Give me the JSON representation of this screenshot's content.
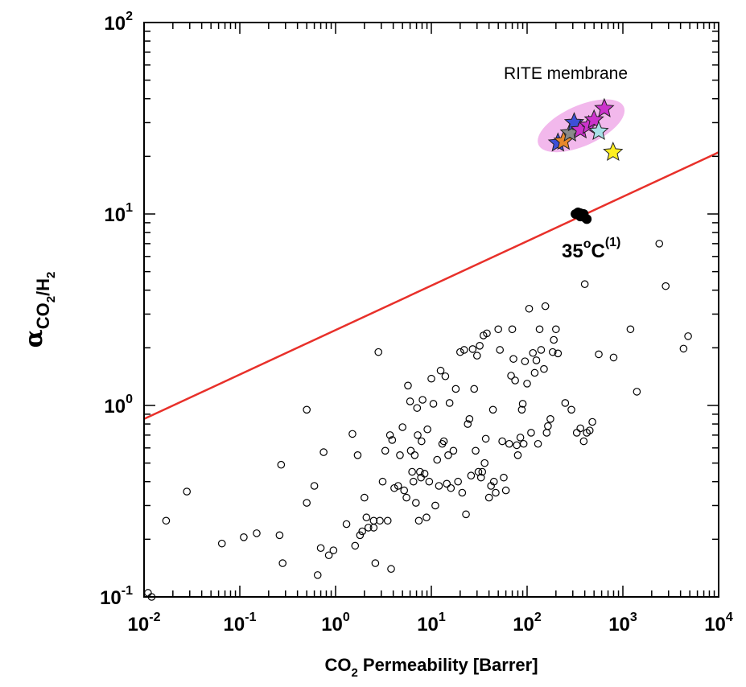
{
  "chart_data": {
    "type": "scatter",
    "xscale": "log",
    "yscale": "log",
    "xlim": [
      0.01,
      10000
    ],
    "ylim": [
      0.1,
      100
    ],
    "xlabel": {
      "pre": "CO",
      "sub": "2",
      "post": " Permeability [Barrer]"
    },
    "ylabel": {
      "greek": "α",
      "pre": "CO",
      "sub1": "2",
      "mid": "/H",
      "sub2": "2"
    },
    "x_ticks": [
      {
        "value": 0.01,
        "base": "10",
        "exp": "-2"
      },
      {
        "value": 0.1,
        "base": "10",
        "exp": "-1"
      },
      {
        "value": 1,
        "base": "10",
        "exp": "0"
      },
      {
        "value": 10,
        "base": "10",
        "exp": "1"
      },
      {
        "value": 100,
        "base": "10",
        "exp": "2"
      },
      {
        "value": 1000,
        "base": "10",
        "exp": "3"
      },
      {
        "value": 10000,
        "base": "10",
        "exp": "4"
      }
    ],
    "y_ticks": [
      {
        "value": 0.1,
        "base": "10",
        "exp": "-1"
      },
      {
        "value": 1,
        "base": "10",
        "exp": "0"
      },
      {
        "value": 10,
        "base": "10",
        "exp": "1"
      },
      {
        "value": 100,
        "base": "10",
        "exp": "2"
      }
    ],
    "upper_bound": {
      "x": [
        0.01,
        10000
      ],
      "y": [
        0.85,
        21
      ],
      "color": "#e8302a"
    },
    "literature_points": [
      [
        0.011,
        0.105
      ],
      [
        0.012,
        0.1
      ],
      [
        0.017,
        0.25
      ],
      [
        0.028,
        0.355
      ],
      [
        0.065,
        0.19
      ],
      [
        0.11,
        0.205
      ],
      [
        0.15,
        0.215
      ],
      [
        0.26,
        0.21
      ],
      [
        0.27,
        0.49
      ],
      [
        0.28,
        0.15
      ],
      [
        0.5,
        0.31
      ],
      [
        0.5,
        0.95
      ],
      [
        0.6,
        0.38
      ],
      [
        0.65,
        0.13
      ],
      [
        0.7,
        0.18
      ],
      [
        0.75,
        0.57
      ],
      [
        0.85,
        0.165
      ],
      [
        0.95,
        0.175
      ],
      [
        1.3,
        0.24
      ],
      [
        1.5,
        0.71
      ],
      [
        1.6,
        0.185
      ],
      [
        1.7,
        0.55
      ],
      [
        1.8,
        0.21
      ],
      [
        1.9,
        0.22
      ],
      [
        2.0,
        0.33
      ],
      [
        2.1,
        0.26
      ],
      [
        2.2,
        0.23
      ],
      [
        2.5,
        0.23
      ],
      [
        2.5,
        0.25
      ],
      [
        2.6,
        0.15
      ],
      [
        2.8,
        1.9
      ],
      [
        2.9,
        0.25
      ],
      [
        3.1,
        0.4
      ],
      [
        3.3,
        0.58
      ],
      [
        3.5,
        0.25
      ],
      [
        3.7,
        0.7
      ],
      [
        3.8,
        0.14
      ],
      [
        3.9,
        0.66
      ],
      [
        4.1,
        0.37
      ],
      [
        4.5,
        0.38
      ],
      [
        4.7,
        0.55
      ],
      [
        5.0,
        0.77
      ],
      [
        5.2,
        0.36
      ],
      [
        5.5,
        0.33
      ],
      [
        5.7,
        1.27
      ],
      [
        6.0,
        1.05
      ],
      [
        6.1,
        0.58
      ],
      [
        6.3,
        0.45
      ],
      [
        6.5,
        0.4
      ],
      [
        6.7,
        0.55
      ],
      [
        6.9,
        0.31
      ],
      [
        7.1,
        0.97
      ],
      [
        7.2,
        0.7
      ],
      [
        7.4,
        0.25
      ],
      [
        7.6,
        0.45
      ],
      [
        7.8,
        0.42
      ],
      [
        7.9,
        0.65
      ],
      [
        8.1,
        1.07
      ],
      [
        8.5,
        0.44
      ],
      [
        8.9,
        0.26
      ],
      [
        9.1,
        0.75
      ],
      [
        9.5,
        0.4
      ],
      [
        10,
        1.38
      ],
      [
        10.5,
        1.02
      ],
      [
        11,
        0.3
      ],
      [
        11.5,
        0.52
      ],
      [
        12,
        0.38
      ],
      [
        12.5,
        1.52
      ],
      [
        13,
        0.63
      ],
      [
        13.5,
        0.65
      ],
      [
        14,
        1.42
      ],
      [
        14.5,
        0.39
      ],
      [
        15,
        0.55
      ],
      [
        15.5,
        1.03
      ],
      [
        16,
        0.37
      ],
      [
        17,
        0.58
      ],
      [
        18,
        1.22
      ],
      [
        19,
        0.4
      ],
      [
        20,
        1.9
      ],
      [
        21,
        0.35
      ],
      [
        22,
        1.95
      ],
      [
        23,
        0.27
      ],
      [
        24,
        0.8
      ],
      [
        25,
        0.85
      ],
      [
        26,
        0.43
      ],
      [
        27,
        1.97
      ],
      [
        28,
        1.22
      ],
      [
        29,
        0.58
      ],
      [
        30,
        1.82
      ],
      [
        31,
        0.45
      ],
      [
        32,
        2.05
      ],
      [
        33,
        0.42
      ],
      [
        34,
        0.45
      ],
      [
        35,
        2.32
      ],
      [
        36,
        0.5
      ],
      [
        37,
        0.67
      ],
      [
        38,
        2.38
      ],
      [
        40,
        0.33
      ],
      [
        42,
        0.38
      ],
      [
        44,
        0.95
      ],
      [
        45,
        0.4
      ],
      [
        47,
        0.35
      ],
      [
        50,
        2.5
      ],
      [
        52,
        1.95
      ],
      [
        55,
        0.65
      ],
      [
        57,
        0.42
      ],
      [
        60,
        0.36
      ],
      [
        65,
        0.63
      ],
      [
        68,
        1.43
      ],
      [
        70,
        2.5
      ],
      [
        72,
        1.75
      ],
      [
        75,
        1.35
      ],
      [
        78,
        0.62
      ],
      [
        80,
        0.55
      ],
      [
        85,
        0.68
      ],
      [
        88,
        0.95
      ],
      [
        90,
        1.02
      ],
      [
        92,
        0.63
      ],
      [
        95,
        1.7
      ],
      [
        100,
        1.3
      ],
      [
        105,
        3.2
      ],
      [
        110,
        0.72
      ],
      [
        115,
        1.88
      ],
      [
        120,
        1.48
      ],
      [
        125,
        1.72
      ],
      [
        130,
        0.63
      ],
      [
        135,
        2.5
      ],
      [
        140,
        1.95
      ],
      [
        150,
        1.55
      ],
      [
        155,
        3.3
      ],
      [
        160,
        0.72
      ],
      [
        165,
        0.78
      ],
      [
        175,
        0.85
      ],
      [
        185,
        1.9
      ],
      [
        190,
        2.2
      ],
      [
        200,
        2.5
      ],
      [
        210,
        1.87
      ],
      [
        250,
        1.03
      ],
      [
        290,
        0.95
      ],
      [
        330,
        0.72
      ],
      [
        360,
        0.76
      ],
      [
        390,
        0.65
      ],
      [
        400,
        4.3
      ],
      [
        420,
        0.72
      ],
      [
        450,
        0.74
      ],
      [
        480,
        0.82
      ],
      [
        560,
        1.85
      ],
      [
        800,
        1.78
      ],
      [
        1200,
        2.5
      ],
      [
        1400,
        1.18
      ],
      [
        2400,
        7.0
      ],
      [
        2800,
        4.2
      ],
      [
        4300,
        1.98
      ],
      [
        4800,
        2.3
      ]
    ],
    "measured_35C_points": [
      [
        320,
        10.0
      ],
      [
        340,
        10.2
      ],
      [
        360,
        10.1
      ],
      [
        380,
        9.8
      ],
      [
        400,
        9.6
      ],
      [
        420,
        9.4
      ],
      [
        360,
        9.7
      ],
      [
        390,
        10.0
      ]
    ],
    "rite_points": [
      {
        "x": 210,
        "y": 23.5,
        "color": "#3d4fd8"
      },
      {
        "x": 240,
        "y": 24.0,
        "color": "#e8882a"
      },
      {
        "x": 280,
        "y": 26.5,
        "color": "#8a8a8a"
      },
      {
        "x": 310,
        "y": 30.0,
        "color": "#3d4fd8"
      },
      {
        "x": 360,
        "y": 27.5,
        "color": "#cc33cc"
      },
      {
        "x": 440,
        "y": 29.0,
        "color": "#cc33cc"
      },
      {
        "x": 500,
        "y": 31.0,
        "color": "#cc33cc"
      },
      {
        "x": 560,
        "y": 27.0,
        "color": "#a8e0e8"
      },
      {
        "x": 640,
        "y": 35.5,
        "color": "#cc33cc"
      },
      {
        "x": 790,
        "y": 21.0,
        "color": "#ffee20"
      }
    ],
    "annotations": {
      "rite": "RITE membrane",
      "temp_base": "35",
      "temp_degree": "o",
      "temp_unit": "C",
      "temp_ref": "(1)"
    },
    "grid": false
  },
  "colors": {
    "ellipse": "#f2b8ec",
    "line": "#e8302a",
    "dot": "#000000"
  }
}
